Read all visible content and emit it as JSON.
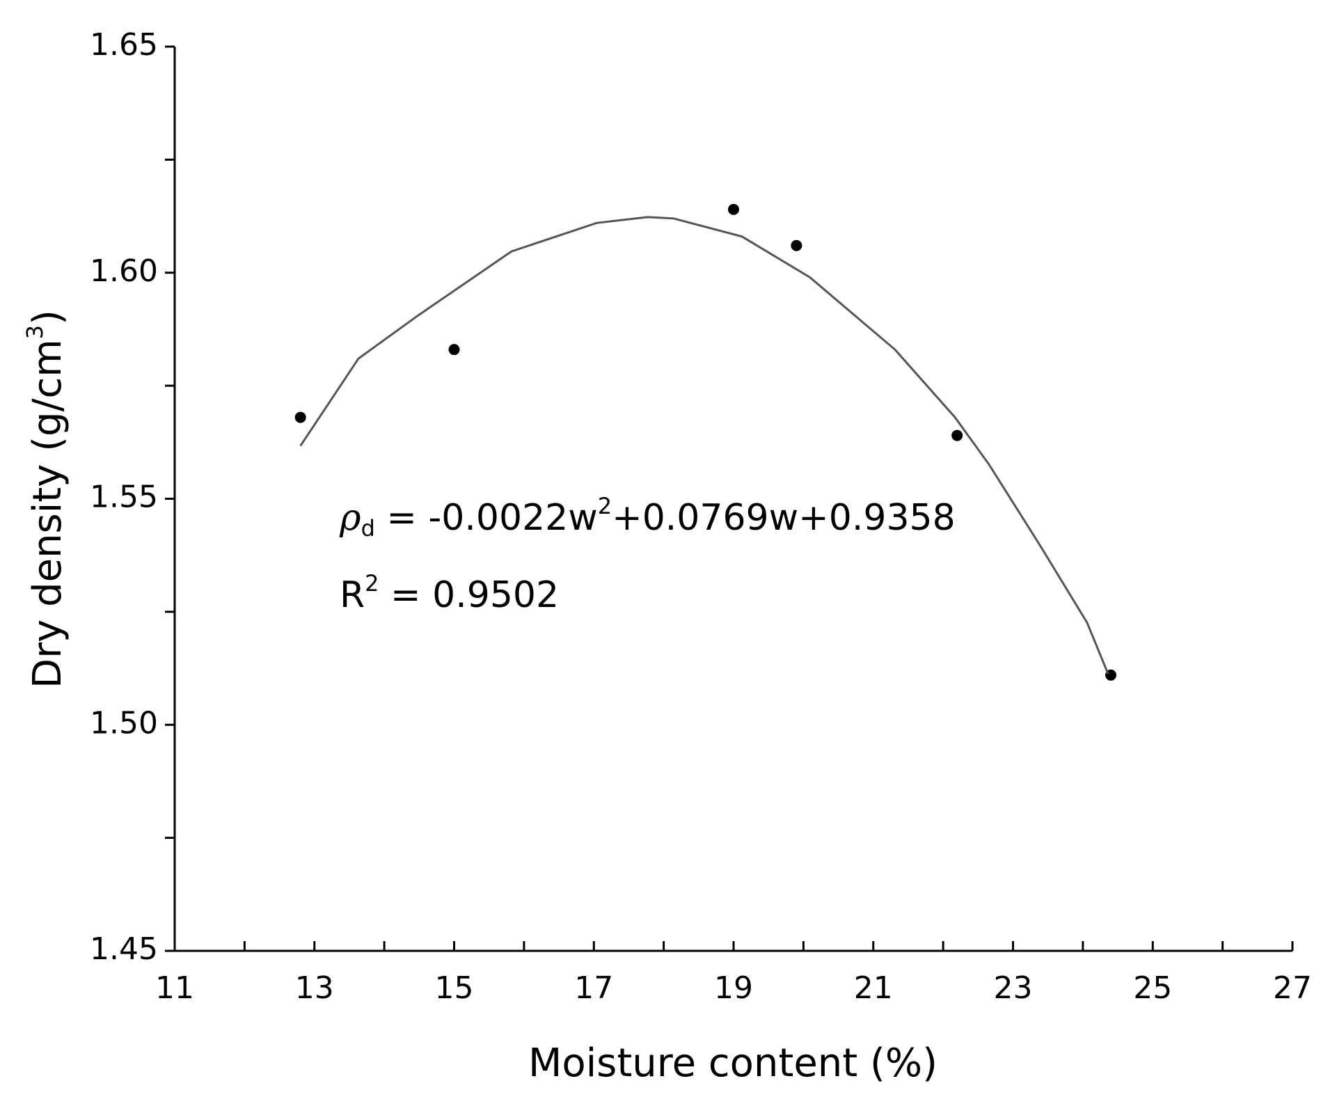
{
  "chart_data": {
    "type": "scatter",
    "x_label": "Moisture content (%)",
    "y_label": [
      "Dry density (g/cm",
      "3",
      ")"
    ],
    "equation": [
      "ρ",
      "d",
      " = -0.0022w",
      "2",
      "+0.0769w+0.9358"
    ],
    "r_squared": [
      "R",
      "2",
      " = 0.9502"
    ],
    "series": [
      {
        "type": "scatter",
        "color": "#000000",
        "x": [
          12.8,
          15.0,
          19.0,
          19.9,
          22.2,
          24.4
        ],
        "values": [
          1.568,
          1.583,
          1.614,
          1.606,
          1.564,
          1.511
        ]
      },
      {
        "type": "line",
        "color": "#555555",
        "x": [
          12.8,
          13.63,
          14.48,
          15.82,
          17.04,
          17.77,
          18.14,
          19.12,
          20.09,
          21.31,
          22.17,
          22.66,
          23.39,
          24.06,
          24.36
        ],
        "values": [
          1.5617,
          1.581,
          1.5905,
          1.6047,
          1.611,
          1.6123,
          1.612,
          1.608,
          1.599,
          1.583,
          1.568,
          1.5575,
          1.5396,
          1.5226,
          1.5113
        ]
      }
    ],
    "xlim": [
      11,
      27
    ],
    "xticks": [
      11,
      13,
      15,
      17,
      19,
      21,
      23,
      25,
      27
    ],
    "xminorticks": [
      12,
      14,
      16,
      18,
      20,
      22,
      24,
      26
    ],
    "ylim": [
      1.45,
      1.65
    ],
    "yticks": [
      {
        "value": 1.45,
        "label": "1.45"
      },
      {
        "value": 1.5,
        "label": "1.50"
      },
      {
        "value": 1.55,
        "label": "1.55"
      },
      {
        "value": 1.6,
        "label": "1.60"
      },
      {
        "value": 1.65,
        "label": "1.65"
      }
    ],
    "yminorticks": [
      1.475,
      1.525,
      1.575,
      1.625
    ],
    "grid": false
  }
}
